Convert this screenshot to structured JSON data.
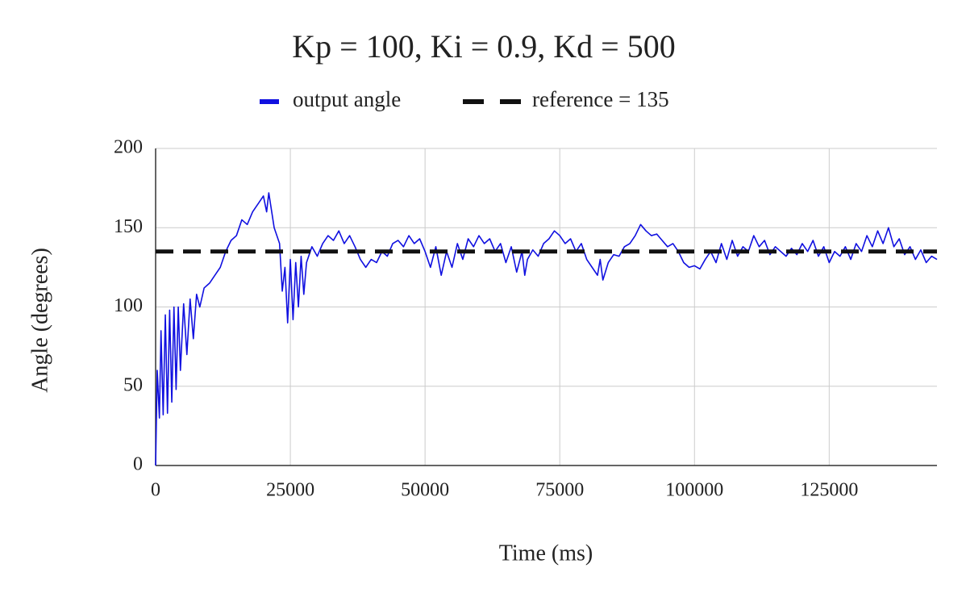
{
  "chart_data": {
    "type": "line",
    "title": "Kp = 100, Ki = 0.9, Kd = 500",
    "x_label": "Time (ms)",
    "y_label": "Angle (degrees)",
    "xlim": [
      0,
      145000
    ],
    "ylim": [
      0,
      200
    ],
    "xticks": [
      0,
      25000,
      50000,
      75000,
      100000,
      125000
    ],
    "yticks": [
      0,
      50,
      100,
      150,
      200
    ],
    "grid": true,
    "legend": "top",
    "series": [
      {
        "name": "output angle",
        "color": "#1010e0",
        "dash": false,
        "x": [
          0,
          300,
          700,
          1000,
          1400,
          1800,
          2200,
          2600,
          3000,
          3400,
          3800,
          4200,
          4600,
          5200,
          5800,
          6400,
          7000,
          7600,
          8200,
          9000,
          10000,
          11000,
          12000,
          13000,
          14000,
          15000,
          16000,
          17000,
          18000,
          19000,
          20000,
          20600,
          21000,
          22000,
          23000,
          23500,
          24000,
          24500,
          25000,
          25500,
          26000,
          26500,
          27000,
          27500,
          28000,
          29000,
          30000,
          31000,
          32000,
          33000,
          34000,
          35000,
          36000,
          37000,
          38000,
          39000,
          40000,
          41000,
          42000,
          43000,
          44000,
          45000,
          46000,
          47000,
          48000,
          49000,
          50000,
          51000,
          52000,
          53000,
          54000,
          55000,
          56000,
          57000,
          58000,
          59000,
          60000,
          61000,
          62000,
          63000,
          64000,
          65000,
          66000,
          67000,
          68000,
          68500,
          69000,
          70000,
          71000,
          72000,
          73000,
          74000,
          75000,
          76000,
          77000,
          78000,
          79000,
          80000,
          81000,
          82000,
          82500,
          83000,
          84000,
          85000,
          86000,
          87000,
          88000,
          89000,
          90000,
          91000,
          92000,
          93000,
          94000,
          95000,
          96000,
          97000,
          98000,
          99000,
          100000,
          101000,
          102000,
          103000,
          104000,
          105000,
          106000,
          107000,
          108000,
          109000,
          110000,
          111000,
          112000,
          113000,
          114000,
          115000,
          116000,
          117000,
          118000,
          119000,
          120000,
          121000,
          122000,
          123000,
          124000,
          125000,
          126000,
          127000,
          128000,
          129000,
          130000,
          131000,
          132000,
          133000,
          134000,
          135000,
          136000,
          137000,
          138000,
          139000,
          140000,
          141000,
          142000,
          143000,
          144000,
          145000
        ],
        "values": [
          0,
          60,
          30,
          85,
          32,
          95,
          33,
          98,
          40,
          100,
          48,
          100,
          60,
          102,
          70,
          105,
          80,
          108,
          100,
          112,
          115,
          120,
          125,
          135,
          142,
          145,
          155,
          152,
          160,
          165,
          170,
          160,
          172,
          150,
          140,
          110,
          125,
          90,
          130,
          92,
          128,
          100,
          132,
          108,
          128,
          138,
          132,
          140,
          145,
          142,
          148,
          140,
          145,
          138,
          130,
          125,
          130,
          128,
          135,
          132,
          140,
          142,
          138,
          145,
          140,
          143,
          135,
          125,
          138,
          120,
          135,
          125,
          140,
          130,
          143,
          138,
          145,
          140,
          143,
          135,
          140,
          128,
          138,
          122,
          135,
          120,
          130,
          136,
          132,
          140,
          143,
          148,
          145,
          140,
          143,
          135,
          140,
          130,
          125,
          120,
          130,
          117,
          128,
          133,
          132,
          138,
          140,
          145,
          152,
          148,
          145,
          146,
          142,
          138,
          140,
          135,
          128,
          125,
          126,
          124,
          130,
          135,
          128,
          140,
          130,
          142,
          132,
          138,
          135,
          145,
          138,
          142,
          133,
          138,
          135,
          132,
          137,
          133,
          140,
          135,
          142,
          132,
          138,
          128,
          135,
          132,
          138,
          130,
          140,
          135,
          145,
          138,
          148,
          140,
          150,
          138,
          143,
          133,
          138,
          130,
          136,
          128,
          132,
          130
        ]
      },
      {
        "name": "reference = 135",
        "color": "#111111",
        "dash": true,
        "x": [
          0,
          145000
        ],
        "values": [
          135,
          135
        ]
      }
    ]
  }
}
